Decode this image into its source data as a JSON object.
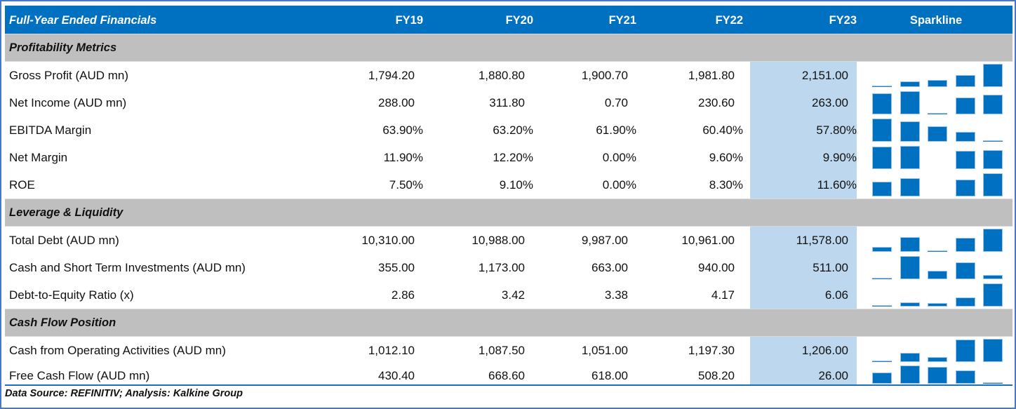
{
  "header": {
    "title": "Full-Year Ended Financials",
    "columns": [
      "FY19",
      "FY20",
      "FY21",
      "FY22",
      "FY23"
    ],
    "sparkline_label": "Sparkline"
  },
  "colors": {
    "header_bg": "#0070c0",
    "section_bg": "#bfbfbf",
    "highlight_bg": "#bdd7ee",
    "bar": "#0070c0"
  },
  "sections": [
    {
      "title": "Profitability Metrics",
      "rows": [
        {
          "label": "Gross Profit (AUD mn)",
          "values": [
            "1,794.20",
            "1,880.80",
            "1,900.70",
            "1,981.80",
            "2,151.00"
          ],
          "series": [
            1794.2,
            1880.8,
            1900.7,
            1981.8,
            2151.0
          ]
        },
        {
          "label": "Net Income (AUD mn)",
          "values": [
            "288.00",
            "311.80",
            "0.70",
            "230.60",
            "263.00"
          ],
          "series": [
            288.0,
            311.8,
            0.7,
            230.6,
            263.0
          ]
        },
        {
          "label": "EBITDA Margin",
          "values": [
            "63.90%",
            "63.20%",
            "61.90%",
            "60.40%",
            "57.80%"
          ],
          "series": [
            63.9,
            63.2,
            61.9,
            60.4,
            57.8
          ]
        },
        {
          "label": "Net Margin",
          "values": [
            "11.90%",
            "12.20%",
            "0.00%",
            "9.60%",
            "9.90%"
          ],
          "series": [
            11.9,
            12.2,
            0.0,
            9.6,
            9.9
          ]
        },
        {
          "label": "ROE",
          "values": [
            "7.50%",
            "9.10%",
            "0.00%",
            "8.30%",
            "11.60%"
          ],
          "series": [
            7.5,
            9.1,
            0.0,
            8.3,
            11.6
          ]
        }
      ]
    },
    {
      "title": "Leverage & Liquidity",
      "rows": [
        {
          "label": "Total Debt (AUD mn)",
          "values": [
            "10,310.00",
            "10,988.00",
            "9,987.00",
            "10,961.00",
            "11,578.00"
          ],
          "series": [
            10310,
            10988,
            9987,
            10961,
            11578
          ]
        },
        {
          "label": "Cash and Short Term Investments (AUD mn)",
          "values": [
            "355.00",
            "1,173.00",
            "663.00",
            "940.00",
            "511.00"
          ],
          "series": [
            355,
            1173,
            663,
            940,
            511
          ]
        },
        {
          "label": "Debt-to-Equity Ratio (x)",
          "values": [
            "2.86",
            "3.42",
            "3.38",
            "4.17",
            "6.06"
          ],
          "series": [
            2.86,
            3.42,
            3.38,
            4.17,
            6.06
          ]
        }
      ]
    },
    {
      "title": "Cash Flow Position",
      "rows": [
        {
          "label": "Cash from Operating Activities (AUD mn)",
          "values": [
            "1,012.10",
            "1,087.50",
            "1,051.00",
            "1,197.30",
            "1,206.00"
          ],
          "series": [
            1012.1,
            1087.5,
            1051.0,
            1197.3,
            1206.0
          ]
        },
        {
          "label": "Free Cash Flow (AUD mn)",
          "values": [
            "430.40",
            "668.60",
            "618.00",
            "508.20",
            "26.00"
          ],
          "series": [
            430.4,
            668.6,
            618.0,
            508.2,
            26.0
          ]
        }
      ]
    }
  ],
  "footer": "Data Source: REFINITIV; Analysis: Kalkine Group"
}
